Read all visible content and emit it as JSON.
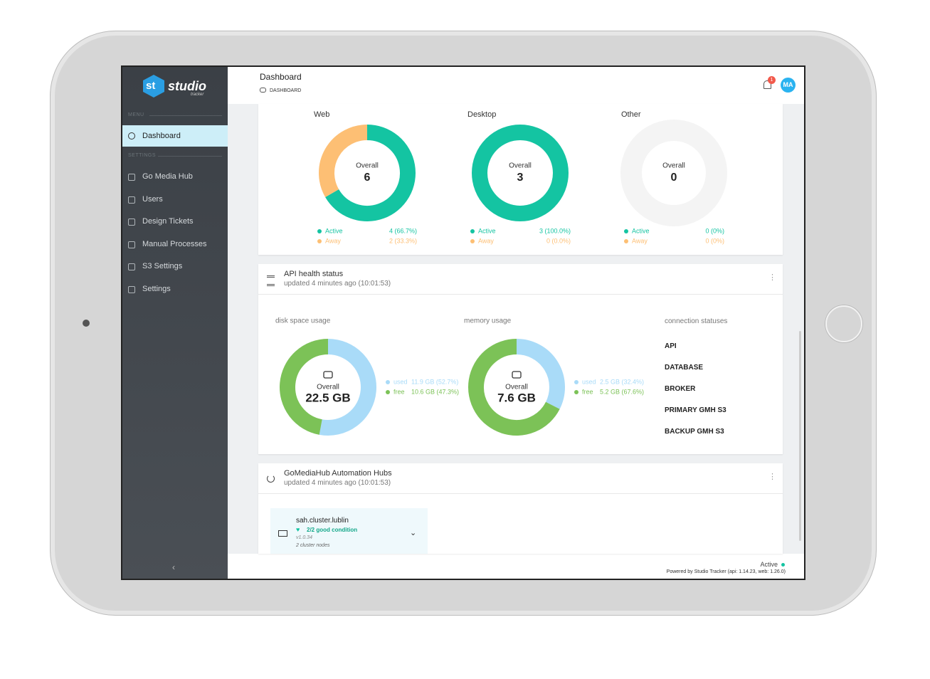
{
  "brand": {
    "logo": "st",
    "name": "studio",
    "tagline": "tracker"
  },
  "sidebar": {
    "menu_heading": "MENU",
    "menu": [
      "Dashboard"
    ],
    "settings_heading": "SETTINGS",
    "settings": [
      "Go Media Hub",
      "Users",
      "Design Tickets",
      "Manual Processes",
      "S3 Settings",
      "Settings"
    ]
  },
  "header": {
    "title": "Dashboard",
    "breadcrumb": "DASHBOARD",
    "notifications": 1,
    "avatar": "MA"
  },
  "chart_data": [
    {
      "type": "donut",
      "title": "Web",
      "center_label": "Overall",
      "center_value": 6,
      "categories": [
        "Active",
        "Away"
      ],
      "values": [
        4,
        2
      ],
      "value_labels": [
        "4 (66.7%)",
        "2 (33.3%)"
      ],
      "colors": [
        "#14c4a2",
        "#fdbf74"
      ]
    },
    {
      "type": "donut",
      "title": "Desktop",
      "center_label": "Overall",
      "center_value": 3,
      "categories": [
        "Active",
        "Away"
      ],
      "values": [
        3,
        0
      ],
      "value_labels": [
        "3 (100.0%)",
        "0 (0.0%)"
      ],
      "colors": [
        "#14c4a2",
        "#fdbf74"
      ]
    },
    {
      "type": "donut",
      "title": "Other",
      "center_label": "Overall",
      "center_value": 0,
      "categories": [
        "Active",
        "Away"
      ],
      "values": [
        0,
        0
      ],
      "value_labels": [
        "0 (0%)",
        "0 (0%)"
      ],
      "colors": [
        "#14c4a2",
        "#fdbf74"
      ]
    },
    {
      "type": "donut",
      "title": "disk space usage",
      "center_label": "Overall",
      "center_value": "22.5 GB",
      "categories": [
        "used",
        "free"
      ],
      "values": [
        11.9,
        10.6
      ],
      "value_labels": [
        "11.9 GB (52.7%)",
        "10.6 GB (47.3%)"
      ],
      "colors": [
        "#a9dbf8",
        "#7cc257"
      ]
    },
    {
      "type": "donut",
      "title": "memory usage",
      "center_label": "Overall",
      "center_value": "7.6 GB",
      "categories": [
        "used",
        "free"
      ],
      "values": [
        2.5,
        5.2
      ],
      "value_labels": [
        "2.5 GB (32.4%)",
        "5.2 GB (67.6%)"
      ],
      "colors": [
        "#a9dbf8",
        "#7cc257"
      ]
    }
  ],
  "api_health": {
    "title": "API health status",
    "updated": "updated 4 minutes ago (10:01:53)",
    "connections_title": "connection statuses",
    "connections": [
      "API",
      "DATABASE",
      "BROKER",
      "PRIMARY GMH S3",
      "BACKUP GMH S3"
    ]
  },
  "hubs": {
    "title": "GoMediaHub Automation Hubs",
    "updated": "updated 4 minutes ago (10:01:53)",
    "cluster": {
      "name": "sah.cluster.lublin",
      "condition": "2/2 good condition",
      "version": "v1.0.34",
      "nodes": "2 cluster nodes"
    }
  },
  "footer": {
    "status": "Active",
    "powered_by": "Powered by Studio Tracker (api: 1.14.23, web: 1.26.0)"
  }
}
